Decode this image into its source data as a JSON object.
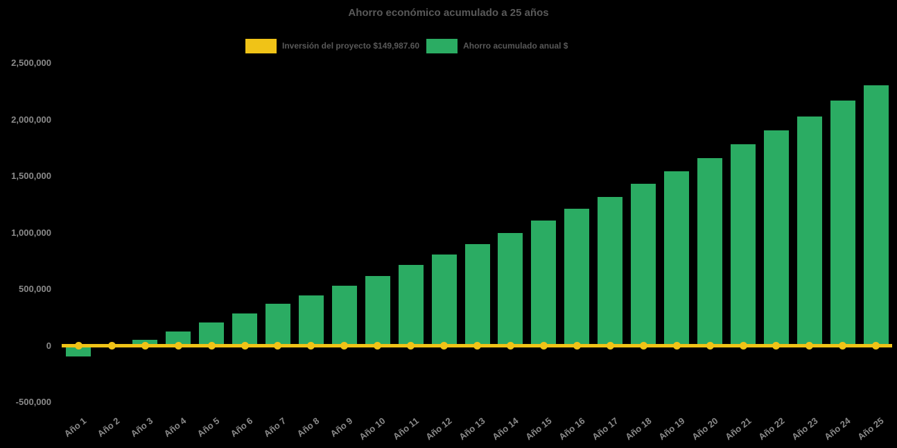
{
  "chart_data": {
    "type": "bar",
    "title": "Ahorro económico acumulado a 25 años",
    "categories": [
      "Año 1",
      "Año 2",
      "Año 3",
      "Año 4",
      "Año 5",
      "Año 6",
      "Año 7",
      "Año 8",
      "Año 9",
      "Año 10",
      "Año 11",
      "Año 12",
      "Año 13",
      "Año 14",
      "Año 15",
      "Año 16",
      "Año 17",
      "Año 18",
      "Año 19",
      "Año 20",
      "Año 21",
      "Año 22",
      "Año 23",
      "Año 24",
      "Año 25"
    ],
    "series": [
      {
        "name": "Inversión del proyecto $149,987.60",
        "type": "line-with-markers",
        "color": "#F0C317",
        "investment_amount_label": "$149,987.60",
        "constant_value": 0
      },
      {
        "name": "Ahorro acumulado anual $",
        "type": "bar",
        "color": "#2BAC63",
        "values": [
          -95000,
          -15000,
          55000,
          125000,
          205000,
          288000,
          370000,
          443000,
          529000,
          616000,
          715000,
          805000,
          900000,
          995000,
          1105000,
          1210000,
          1315000,
          1430000,
          1540000,
          1660000,
          1780000,
          1905000,
          2030000,
          2170000,
          2305000
        ]
      }
    ],
    "ylim": [
      -500000,
      2500000
    ],
    "ytick_step": 500000,
    "yticks": [
      {
        "value": 2500000,
        "label": "2,500,000"
      },
      {
        "value": 2000000,
        "label": "2,000,000"
      },
      {
        "value": 1500000,
        "label": "1,500,000"
      },
      {
        "value": 1000000,
        "label": "1,000,000"
      },
      {
        "value": 500000,
        "label": "500,000"
      },
      {
        "value": 0,
        "label": "0"
      },
      {
        "value": -500000,
        "label": "-500,000"
      }
    ],
    "grid": false,
    "legend_position": "top-center",
    "background_color": "#000000",
    "text_colors": {
      "title": "#595959",
      "legend": "#595959",
      "ticks": "#8a8a8a"
    }
  }
}
